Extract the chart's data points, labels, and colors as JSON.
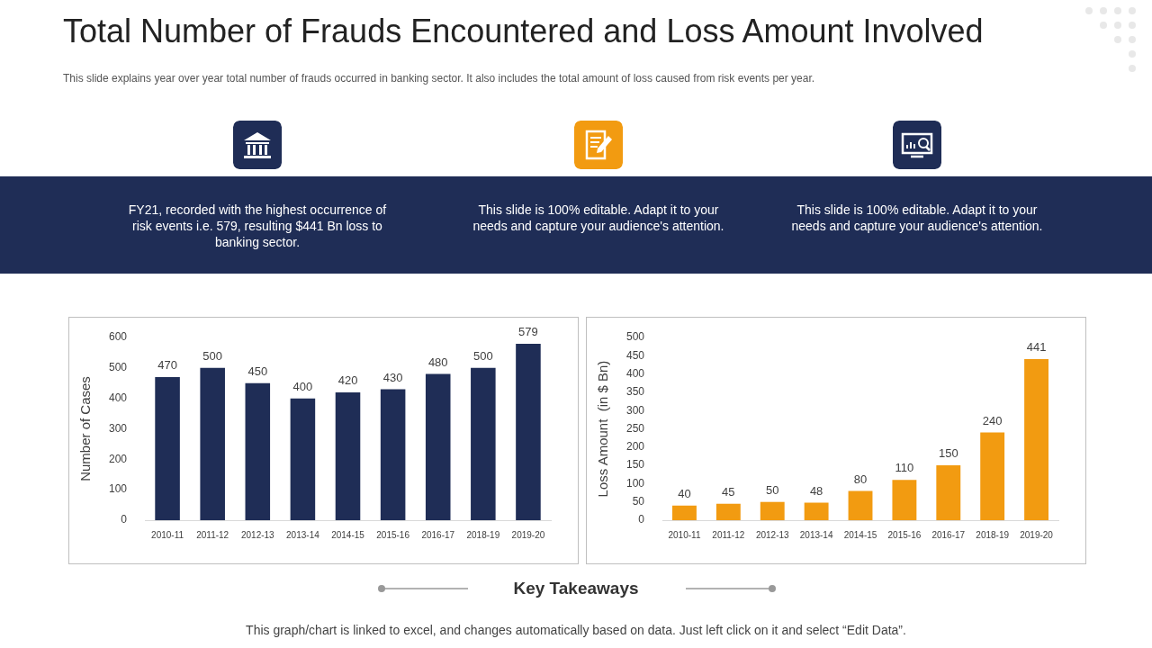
{
  "chart_data": [
    {
      "type": "other",
      "title": "Total Number of Frauds Encountered and Loss Amount Involved",
      "subtitle": "This slide explains year over year total number of frauds occurred in banking sector. It also includes the total amount of loss caused from risk events per year.",
      "annotations": [
        "FY21, recorded with the highest occurrence of risk events i.e. 579, resulting $441 Bn loss to banking sector.",
        "This slide is 100% editable.  Adapt it to your needs and capture your audience's attention.",
        "This slide is 100% editable.  Adapt it to your needs and capture your audience's attention.",
        "Key Takeaways",
        "This graph/chart is linked to excel, and changes automatically based on data. Just left click on it and select “Edit Data”."
      ]
    },
    {
      "type": "bar",
      "ylabel": "Number of Cases",
      "categories": [
        "2010-11",
        "2011-12",
        "2012-13",
        "2013-14",
        "2014-15",
        "2015-16",
        "2016-17",
        "2018-19",
        "2019-20"
      ],
      "values": [
        470,
        500,
        450,
        400,
        420,
        430,
        480,
        500,
        579
      ],
      "color": "#1f2d56",
      "ylim": [
        0,
        600
      ],
      "yticks": [
        0,
        100,
        200,
        300,
        400,
        500,
        600
      ],
      "data_labels": true
    },
    {
      "type": "bar",
      "ylabel": "Loss Amount  (in $ Bn)",
      "categories": [
        "2010-11",
        "2011-12",
        "2012-13",
        "2013-14",
        "2014-15",
        "2015-16",
        "2016-17",
        "2018-19",
        "2019-20"
      ],
      "values": [
        40,
        45,
        50,
        48,
        80,
        110,
        150,
        240,
        441
      ],
      "color": "#f29b11",
      "ylim": [
        0,
        500
      ],
      "yticks": [
        0,
        50,
        100,
        150,
        200,
        250,
        300,
        350,
        400,
        450,
        500
      ],
      "data_labels": true
    }
  ]
}
